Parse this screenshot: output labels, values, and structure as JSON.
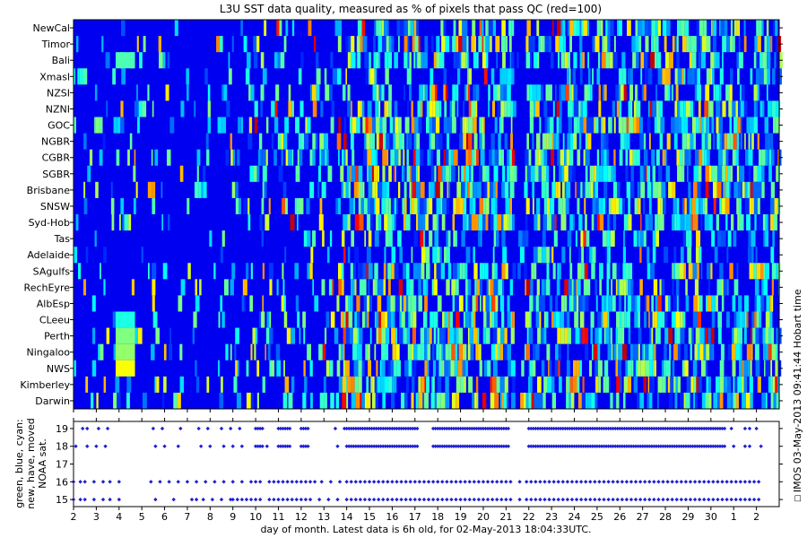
{
  "chart_data": [
    {
      "type": "heatmap",
      "title": "L3U SST data quality, measured as % of pixels that pass QC (red=100)",
      "regions": [
        "NewCal",
        "Timor",
        "Bali",
        "Xmasl",
        "NZSI",
        "NZNI",
        "GOC",
        "NGBR",
        "CGBR",
        "SGBR",
        "Brisbane",
        "SNSW",
        "Syd-Hob",
        "Tas",
        "Adelaide",
        "SAgulfs",
        "RechEyre",
        "AlbEsp",
        "CLeeu",
        "Perth",
        "Ningaloo",
        "NWS",
        "Kimberley",
        "Darwin"
      ],
      "x_range": [
        2,
        33
      ],
      "value_range": [
        0,
        100
      ],
      "colormap": "jet",
      "side_annotation": "IMOS 03-May-2013 09:41:44 Hobart time",
      "note": "Cell values estimated from colour; columns are satellite passes (unlabelled)."
    },
    {
      "type": "scatter",
      "ylabel": "green, blue, cyan:\nnew, have, moved\nNOAA sat.",
      "y_ticks": [
        "15",
        "16",
        "17",
        "18",
        "19"
      ],
      "x_tick_labels": [
        "2",
        "3",
        "4",
        "5",
        "6",
        "7",
        "8",
        "9",
        "10",
        "11",
        "12",
        "13",
        "14",
        "15",
        "16",
        "17",
        "18",
        "19",
        "20",
        "21",
        "22",
        "23",
        "24",
        "25",
        "26",
        "27",
        "28",
        "29",
        "30",
        "1",
        "2"
      ],
      "xlabel": "day of month. Latest data is 6h old, for 02-May-2013 18:04:33UTC.",
      "x_range": [
        2,
        33
      ],
      "y_range": [
        14.6,
        19.4
      ],
      "point_color": "#2020d0",
      "series": [
        {
          "sat": 19,
          "x": [
            2.4,
            2.6,
            3.1,
            3.5,
            5.5,
            5.9,
            6.7,
            7.5,
            7.9,
            8.5,
            8.9,
            9.3,
            10.0,
            10.1,
            10.2,
            10.3,
            11.0,
            11.1,
            11.2,
            11.3,
            11.4,
            11.5,
            12.0,
            12.1,
            12.2,
            12.3,
            13.5,
            13.9,
            14.0,
            14.1,
            14.2,
            14.3,
            14.4,
            14.5,
            14.6,
            14.7,
            14.8,
            14.9,
            15.0,
            15.1,
            15.2,
            15.3,
            15.4,
            15.5,
            15.6,
            15.7,
            15.8,
            15.9,
            16.0,
            16.1,
            16.2,
            16.3,
            16.4,
            16.5,
            16.6,
            16.7,
            16.8,
            16.9,
            17.0,
            17.1,
            17.8,
            17.9,
            18.0,
            18.1,
            18.2,
            18.3,
            18.4,
            18.5,
            18.6,
            18.7,
            18.8,
            18.9,
            19.0,
            19.1,
            19.2,
            19.3,
            19.4,
            19.5,
            19.6,
            19.7,
            19.8,
            19.9,
            20.0,
            20.1,
            20.2,
            20.3,
            20.4,
            20.5,
            20.6,
            20.7,
            20.8,
            20.9,
            21.0,
            21.1,
            22.0,
            22.1,
            22.2,
            22.3,
            22.4,
            22.5,
            22.6,
            22.7,
            22.8,
            22.9,
            23.0,
            23.1,
            23.2,
            23.3,
            23.4,
            23.5,
            23.6,
            23.7,
            23.8,
            23.9,
            24.0,
            24.1,
            24.2,
            24.3,
            24.4,
            24.5,
            24.6,
            24.7,
            24.8,
            24.9,
            25.0,
            25.1,
            25.2,
            25.3,
            25.4,
            25.5,
            25.6,
            25.7,
            25.8,
            25.9,
            26.0,
            26.1,
            26.2,
            26.3,
            26.4,
            26.5,
            26.6,
            26.7,
            26.8,
            26.9,
            27.0,
            27.1,
            27.2,
            27.3,
            27.4,
            27.5,
            27.6,
            27.7,
            27.8,
            27.9,
            28.0,
            28.1,
            28.2,
            28.3,
            28.4,
            28.5,
            28.6,
            28.7,
            28.8,
            28.9,
            29.0,
            29.1,
            29.2,
            29.3,
            29.4,
            29.5,
            29.6,
            29.7,
            29.8,
            29.9,
            30.0,
            30.1,
            30.2,
            30.3,
            30.4,
            30.5,
            30.6,
            30.9,
            31.5,
            31.7,
            32.0
          ]
        },
        {
          "sat": 18,
          "x": [
            2.1,
            2.6,
            3.0,
            3.4,
            5.6,
            6.0,
            6.6,
            7.6,
            8.0,
            8.6,
            9.0,
            9.4,
            10.0,
            10.1,
            10.2,
            10.3,
            10.5,
            11.0,
            11.1,
            11.2,
            11.3,
            11.4,
            11.5,
            12.0,
            12.1,
            12.2,
            12.3,
            13.6,
            14.0,
            14.1,
            14.2,
            14.3,
            14.4,
            14.5,
            14.6,
            14.7,
            14.8,
            14.9,
            15.0,
            15.1,
            15.2,
            15.3,
            15.4,
            15.5,
            15.6,
            15.7,
            15.8,
            15.9,
            16.0,
            16.1,
            16.2,
            16.3,
            16.4,
            16.5,
            16.6,
            16.7,
            16.8,
            16.9,
            17.0,
            17.1,
            17.8,
            17.9,
            18.0,
            18.1,
            18.2,
            18.3,
            18.4,
            18.5,
            18.6,
            18.7,
            18.8,
            18.9,
            19.0,
            19.1,
            19.2,
            19.3,
            19.4,
            19.5,
            19.6,
            19.7,
            19.8,
            19.9,
            20.0,
            20.1,
            20.2,
            20.3,
            20.4,
            20.5,
            20.6,
            20.7,
            20.8,
            20.9,
            21.0,
            21.1,
            22.0,
            22.1,
            22.2,
            22.3,
            22.4,
            22.5,
            22.6,
            22.7,
            22.8,
            22.9,
            23.0,
            23.1,
            23.2,
            23.3,
            23.4,
            23.5,
            23.6,
            23.7,
            23.8,
            23.9,
            24.0,
            24.1,
            24.2,
            24.3,
            24.4,
            24.5,
            24.6,
            24.7,
            24.8,
            24.9,
            25.0,
            25.1,
            25.2,
            25.3,
            25.4,
            25.5,
            25.6,
            25.7,
            25.8,
            25.9,
            26.0,
            26.1,
            26.2,
            26.3,
            26.4,
            26.5,
            26.6,
            26.7,
            26.8,
            26.9,
            27.0,
            27.1,
            27.2,
            27.3,
            27.4,
            27.5,
            27.6,
            27.7,
            27.8,
            27.9,
            28.0,
            28.1,
            28.2,
            28.3,
            28.4,
            28.5,
            28.6,
            28.7,
            28.8,
            28.9,
            29.0,
            29.1,
            29.2,
            29.3,
            29.4,
            29.5,
            29.6,
            29.7,
            29.8,
            29.9,
            30.0,
            30.1,
            30.2,
            30.3,
            30.4,
            30.5,
            30.6,
            31.0,
            31.5,
            31.7,
            32.2
          ]
        },
        {
          "sat": 16,
          "x": [
            2.0,
            2.3,
            2.5,
            2.9,
            3.3,
            3.6,
            4.0,
            5.4,
            5.8,
            6.2,
            6.6,
            7.0,
            7.4,
            7.8,
            8.2,
            8.6,
            9.0,
            9.4,
            9.8,
            10.0,
            10.2,
            10.6,
            10.8,
            11.0,
            11.2,
            11.4,
            11.6,
            11.8,
            12.0,
            12.2,
            12.4,
            12.6,
            12.9,
            13.3,
            13.7,
            14.0,
            14.2,
            14.4,
            14.6,
            14.8,
            15.0,
            15.2,
            15.4,
            15.6,
            15.8,
            16.0,
            16.2,
            16.4,
            16.6,
            16.8,
            17.0,
            17.2,
            17.4,
            17.6,
            17.8,
            18.0,
            18.2,
            18.4,
            18.6,
            18.8,
            19.0,
            19.2,
            19.4,
            19.6,
            19.8,
            20.0,
            20.2,
            20.4,
            20.6,
            20.8,
            21.0,
            21.2,
            21.6,
            21.9,
            22.1,
            22.3,
            22.5,
            22.7,
            22.9,
            23.1,
            23.3,
            23.5,
            23.7,
            23.9,
            24.1,
            24.3,
            24.5,
            24.7,
            24.9,
            25.1,
            25.3,
            25.5,
            25.7,
            25.9,
            26.1,
            26.3,
            26.5,
            26.7,
            26.9,
            27.1,
            27.3,
            27.5,
            27.7,
            27.9,
            28.1,
            28.3,
            28.5,
            28.7,
            28.9,
            29.1,
            29.3,
            29.5,
            29.7,
            29.9,
            30.1,
            30.3,
            30.5,
            30.7,
            30.9,
            31.1,
            31.3,
            31.5,
            31.7,
            31.9,
            32.1
          ]
        },
        {
          "sat": 15,
          "x": [
            2.0,
            2.3,
            2.5,
            2.9,
            3.3,
            3.6,
            4.0,
            5.6,
            6.4,
            7.2,
            7.4,
            7.7,
            8.1,
            8.5,
            8.9,
            9.0,
            9.2,
            9.4,
            9.6,
            9.8,
            10.0,
            10.2,
            10.6,
            10.8,
            11.0,
            11.2,
            11.4,
            11.6,
            11.8,
            12.0,
            12.2,
            12.4,
            12.8,
            13.2,
            13.6,
            14.0,
            14.2,
            14.4,
            14.6,
            14.8,
            15.0,
            15.2,
            15.4,
            15.6,
            15.8,
            16.0,
            16.2,
            16.4,
            16.6,
            16.8,
            17.0,
            17.2,
            17.4,
            17.6,
            17.8,
            18.0,
            18.2,
            18.4,
            18.6,
            18.8,
            19.0,
            19.2,
            19.4,
            19.6,
            19.8,
            20.0,
            20.2,
            20.4,
            20.6,
            20.8,
            21.0,
            21.2,
            21.6,
            21.9,
            22.1,
            22.3,
            22.5,
            22.7,
            22.9,
            23.1,
            23.3,
            23.5,
            23.7,
            23.9,
            24.1,
            24.3,
            24.5,
            24.7,
            24.9,
            25.1,
            25.3,
            25.5,
            25.7,
            25.9,
            26.1,
            26.3,
            26.5,
            26.7,
            26.9,
            27.1,
            27.3,
            27.5,
            27.7,
            27.9,
            28.1,
            28.3,
            28.5,
            28.7,
            28.9,
            29.1,
            29.3,
            29.5,
            29.7,
            29.9,
            30.1,
            30.3,
            30.5,
            30.7,
            30.9,
            31.1,
            31.3,
            31.5,
            31.7,
            31.9,
            32.1
          ]
        }
      ]
    }
  ]
}
